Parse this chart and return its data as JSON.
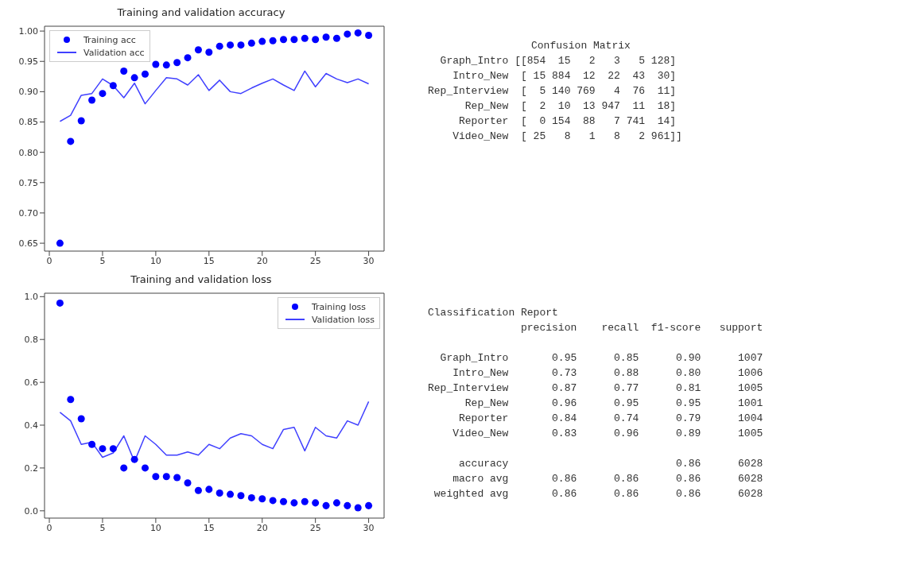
{
  "chart_data": [
    {
      "type": "line",
      "title": "Training and validation accuracy",
      "x": [
        1,
        2,
        3,
        4,
        5,
        6,
        7,
        8,
        9,
        10,
        11,
        12,
        13,
        14,
        15,
        16,
        17,
        18,
        19,
        20,
        21,
        22,
        23,
        24,
        25,
        26,
        27,
        28,
        29,
        30
      ],
      "series": [
        {
          "name": "Training acc",
          "type": "scatter",
          "marker": "circle",
          "color": "#0000ff",
          "values": [
            0.65,
            0.818,
            0.852,
            0.886,
            0.897,
            0.91,
            0.934,
            0.923,
            0.929,
            0.945,
            0.944,
            0.948,
            0.956,
            0.969,
            0.965,
            0.975,
            0.977,
            0.977,
            0.98,
            0.983,
            0.984,
            0.986,
            0.986,
            0.988,
            0.986,
            0.99,
            0.988,
            0.995,
            0.997,
            0.993
          ]
        },
        {
          "name": "Validation acc",
          "type": "line",
          "color": "#4040ff",
          "values": [
            0.851,
            0.861,
            0.894,
            0.897,
            0.921,
            0.91,
            0.89,
            0.914,
            0.88,
            0.902,
            0.923,
            0.921,
            0.911,
            0.928,
            0.902,
            0.919,
            0.9,
            0.897,
            0.906,
            0.914,
            0.921,
            0.911,
            0.902,
            0.934,
            0.908,
            0.93,
            0.921,
            0.915,
            0.921,
            0.913
          ]
        }
      ],
      "xlim": [
        -0.45,
        31.45
      ],
      "xticks": [
        0,
        5,
        10,
        15,
        20,
        25,
        30
      ],
      "ylim": [
        0.637,
        1.008
      ],
      "yticks": [
        {
          "value": 0.65,
          "label": "0.65"
        },
        {
          "value": 0.7,
          "label": "0.70"
        },
        {
          "value": 0.75,
          "label": "0.75"
        },
        {
          "value": 0.8,
          "label": "0.80"
        },
        {
          "value": 0.85,
          "label": "0.85"
        },
        {
          "value": 0.9,
          "label": "0.90"
        },
        {
          "value": 0.95,
          "label": "0.95"
        },
        {
          "value": 1.0,
          "label": "1.00"
        }
      ],
      "grid": false,
      "legend": "top left"
    },
    {
      "type": "other",
      "title": "Confusion Matrix",
      "annotations": [
        "  Graph_Intro [[854  15   2   3   5 128]",
        "    Intro_New  [ 15 884  12  22  43  30]",
        "Rep_Interview  [  5 140 769   4  76  11]",
        "      Rep_New  [  2  10  13 947  11  18]",
        "     Reporter  [  0 154  88   7 741  14]",
        "    Video_New  [ 25   8   1   8   2 961]]"
      ]
    },
    {
      "type": "line",
      "title": "Training and validation loss",
      "x": [
        1,
        2,
        3,
        4,
        5,
        6,
        7,
        8,
        9,
        10,
        11,
        12,
        13,
        14,
        15,
        16,
        17,
        18,
        19,
        20,
        21,
        22,
        23,
        24,
        25,
        26,
        27,
        28,
        29,
        30
      ],
      "series": [
        {
          "name": "Training loss",
          "type": "scatter",
          "marker": "circle",
          "color": "#0000ff",
          "values": [
            0.97,
            0.52,
            0.43,
            0.31,
            0.29,
            0.29,
            0.2,
            0.24,
            0.2,
            0.16,
            0.16,
            0.155,
            0.13,
            0.095,
            0.1,
            0.083,
            0.077,
            0.071,
            0.061,
            0.056,
            0.048,
            0.043,
            0.037,
            0.043,
            0.037,
            0.024,
            0.037,
            0.024,
            0.014,
            0.024
          ]
        },
        {
          "name": "Validation loss",
          "type": "line",
          "color": "#4040ff",
          "values": [
            0.46,
            0.42,
            0.31,
            0.32,
            0.25,
            0.27,
            0.35,
            0.23,
            0.35,
            0.31,
            0.26,
            0.26,
            0.275,
            0.26,
            0.31,
            0.29,
            0.34,
            0.36,
            0.35,
            0.31,
            0.29,
            0.38,
            0.39,
            0.28,
            0.39,
            0.35,
            0.34,
            0.42,
            0.4,
            0.51
          ]
        }
      ],
      "xlim": [
        -0.45,
        31.45
      ],
      "xticks": [
        0,
        5,
        10,
        15,
        20,
        25,
        30
      ],
      "ylim": [
        -0.034,
        1.016
      ],
      "yticks": [
        {
          "value": 0,
          "label": "0.0"
        },
        {
          "value": 0.2,
          "label": "0.2"
        },
        {
          "value": 0.4,
          "label": "0.4"
        },
        {
          "value": 0.6,
          "label": "0.6"
        },
        {
          "value": 0.8,
          "label": "0.8"
        },
        {
          "value": 1.0,
          "label": "1.0"
        }
      ],
      "grid": false,
      "legend": "top right"
    },
    {
      "type": "other",
      "title": "Classification Report",
      "annotations": [
        "               precision    recall  f1-score   support",
        "  Graph_Intro       0.95      0.85      0.90      1007",
        "    Intro_New       0.73      0.88      0.80      1006",
        "Rep_Interview       0.87      0.77      0.81      1005",
        "      Rep_New       0.96      0.95      0.95      1001",
        "     Reporter       0.84      0.74      0.79      1004",
        "    Video_New       0.83      0.96      0.89      1005",
        "     accuracy                           0.86      6028",
        "    macro avg       0.86      0.86      0.86      6028",
        " weighted avg       0.86      0.86      0.86      6028"
      ]
    }
  ]
}
